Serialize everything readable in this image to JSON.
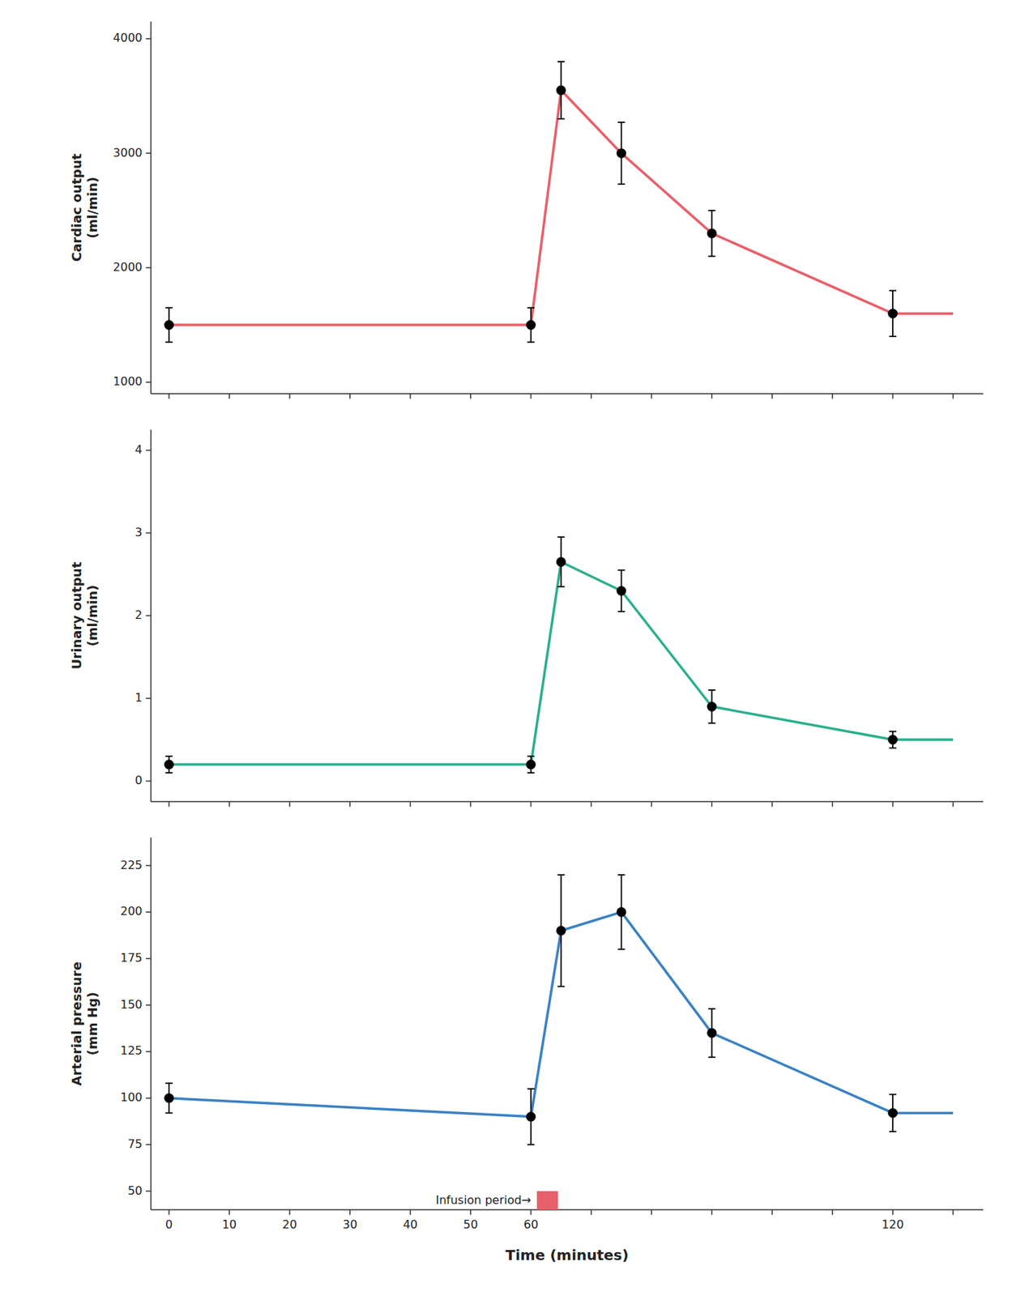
{
  "chart_data": [
    {
      "type": "line",
      "ylabel": "Cardiac output\n(ml/min)",
      "x": [
        0,
        60,
        65,
        75,
        90,
        120
      ],
      "values": [
        1500,
        1500,
        3550,
        3000,
        2300,
        1600
      ],
      "yerr": [
        150,
        150,
        250,
        270,
        200,
        200
      ],
      "line_end": {
        "x": 130,
        "y": 1600
      },
      "color": "#E8606A",
      "marker": "circle",
      "ylim": [
        900,
        4150
      ],
      "yticks": [
        1000,
        2000,
        3000,
        4000
      ],
      "xlim": [
        -3,
        135
      ],
      "xticks": [
        0,
        10,
        20,
        30,
        40,
        50,
        60,
        70,
        80,
        90,
        100,
        110,
        120,
        130
      ],
      "tick_labels": "y",
      "grid": false
    },
    {
      "type": "line",
      "ylabel": "Urinary output\n(ml/min)",
      "x": [
        0,
        60,
        65,
        75,
        90,
        120
      ],
      "values": [
        0.2,
        0.2,
        2.65,
        2.3,
        0.9,
        0.5
      ],
      "yerr": [
        0.1,
        0.1,
        0.3,
        0.25,
        0.2,
        0.1
      ],
      "line_end": {
        "x": 130,
        "y": 0.5
      },
      "color": "#2BAF8E",
      "marker": "circle",
      "ylim": [
        -0.25,
        4.25
      ],
      "yticks": [
        0,
        1,
        2,
        3,
        4
      ],
      "xlim": [
        -3,
        135
      ],
      "xticks": [
        0,
        10,
        20,
        30,
        40,
        50,
        60,
        70,
        80,
        90,
        100,
        110,
        120,
        130
      ],
      "tick_labels": "y",
      "grid": false
    },
    {
      "type": "line",
      "ylabel": "Arterial pressure\n(mm Hg)",
      "xlabel": "Time (minutes)",
      "x": [
        0,
        60,
        65,
        75,
        90,
        120
      ],
      "values": [
        100,
        90,
        190,
        200,
        135,
        92
      ],
      "yerr": [
        8,
        15,
        30,
        20,
        13,
        10
      ],
      "line_end": {
        "x": 130,
        "y": 92
      },
      "color": "#3B82C4",
      "marker": "circle",
      "ylim": [
        40,
        240
      ],
      "yticks": [
        50,
        75,
        100,
        125,
        150,
        175,
        200,
        225
      ],
      "xlim": [
        -3,
        135
      ],
      "xticks": [
        0,
        10,
        20,
        30,
        40,
        50,
        60,
        {
          "value": 70,
          "label": null
        },
        {
          "value": 80,
          "label": null
        },
        {
          "value": 90,
          "label": null
        },
        {
          "value": 100,
          "label": null
        },
        {
          "value": 110,
          "label": null
        },
        120,
        {
          "value": 130,
          "label": null
        }
      ],
      "annotation": {
        "text": "Infusion period→",
        "x": 61.0,
        "width": 3.5,
        "y_top": 50,
        "color": "#E8606A"
      },
      "grid": false
    }
  ]
}
